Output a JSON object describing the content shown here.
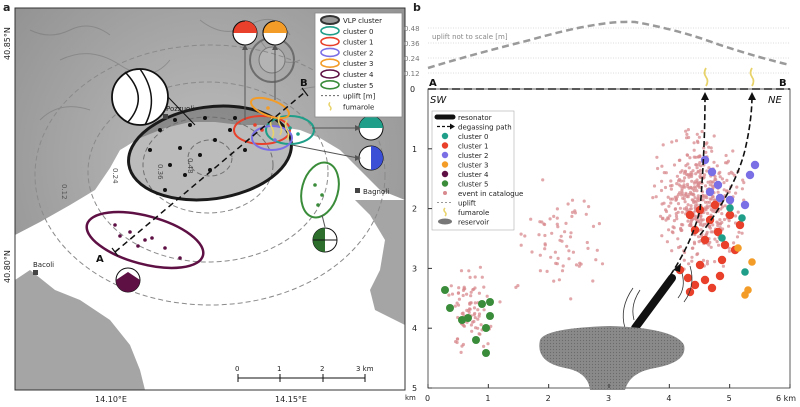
{
  "panel_a": {
    "label": "a",
    "lat_labels": [
      "40.85°N",
      "40.80°N"
    ],
    "lon_labels": [
      "14.10°E",
      "14.15°E"
    ],
    "places": [
      "Pozzuoli",
      "Bagnoli",
      "Bacoli"
    ],
    "profile_end_a": "A",
    "profile_end_b": "B",
    "contour_labels": [
      "0.12",
      "0.24",
      "0.36",
      "0.48"
    ],
    "scalebar_ticks": [
      "0",
      "1",
      "2",
      "3 km"
    ],
    "legend": [
      {
        "name": "VLP cluster",
        "color": "#333333"
      },
      {
        "name": "cluster 0",
        "color": "#1f9e89"
      },
      {
        "name": "cluster 1",
        "color": "#e8402a"
      },
      {
        "name": "cluster 2",
        "color": "#7b6fe6"
      },
      {
        "name": "cluster 3",
        "color": "#f39c28"
      },
      {
        "name": "cluster 4",
        "color": "#5e1044"
      },
      {
        "name": "cluster 5",
        "color": "#3a8c3a"
      },
      {
        "name": "uplift [m]",
        "color": "#666666"
      },
      {
        "name": "fumarole",
        "color": "#e8d36a"
      }
    ]
  },
  "panel_b": {
    "label": "b",
    "uplift_note": "uplift not to scale [m]",
    "uplift_ticks": [
      "0.48",
      "0.36",
      "0.24",
      "0.12",
      "0"
    ],
    "section_end_a": "A",
    "section_end_b": "B",
    "sw": "SW",
    "ne": "NE",
    "y_ticks": [
      "1",
      "2",
      "3",
      "4",
      "5"
    ],
    "y_unit": "km",
    "x_ticks": [
      "0",
      "1",
      "2",
      "3",
      "4",
      "5",
      "6 km"
    ],
    "legend": [
      {
        "name": "resonator",
        "color": "#111111"
      },
      {
        "name": "degassing path",
        "color": "#111111"
      },
      {
        "name": "cluster 0",
        "color": "#1f9e89"
      },
      {
        "name": "cluster 1",
        "color": "#e8402a"
      },
      {
        "name": "cluster 2",
        "color": "#7b6fe6"
      },
      {
        "name": "cluster 3",
        "color": "#f39c28"
      },
      {
        "name": "cluster 4",
        "color": "#5e1044"
      },
      {
        "name": "cluster 5",
        "color": "#3a8c3a"
      },
      {
        "name": "event in catalogue",
        "color": "#d88a8e"
      },
      {
        "name": "uplift",
        "color": "#999999"
      },
      {
        "name": "fumarole",
        "color": "#e8d36a"
      },
      {
        "name": "reservoir",
        "color": "#777777"
      }
    ]
  }
}
